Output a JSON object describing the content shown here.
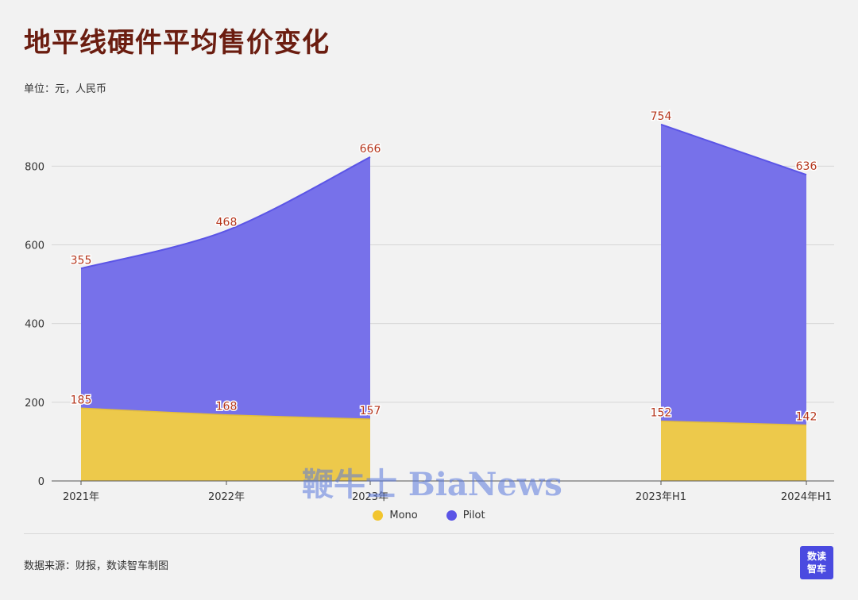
{
  "title": "地平线硬件平均售价变化",
  "subtitle": "单位：元，人民币",
  "source": "数据来源：财报，数读智车制图",
  "logo": {
    "line1": "数读",
    "line2": "智车"
  },
  "watermark": "鞭牛士 BiaNews",
  "colors": {
    "mono": "#edc94b",
    "pilot": "#7771ea",
    "pilot_line": "#5b55e6",
    "mono_legend": "#f2c52e",
    "pilot_legend": "#5b55e6",
    "title": "#6b1d10",
    "label": "#b5361c"
  },
  "chart_data": {
    "type": "area",
    "stacked": true,
    "categories": [
      "2021年",
      "2022年",
      "2023年",
      "2023年H1",
      "2024年H1"
    ],
    "groups": [
      [
        0,
        1,
        2
      ],
      [
        3,
        4
      ]
    ],
    "series": [
      {
        "name": "Mono",
        "values": [
          185,
          168,
          157,
          152,
          142
        ]
      },
      {
        "name": "Pilot",
        "values": [
          355,
          468,
          666,
          754,
          636
        ]
      }
    ],
    "ylim": [
      0,
      960
    ],
    "yticks": [
      0,
      200,
      400,
      600,
      800
    ],
    "grid": true,
    "legend_position": "bottom"
  }
}
